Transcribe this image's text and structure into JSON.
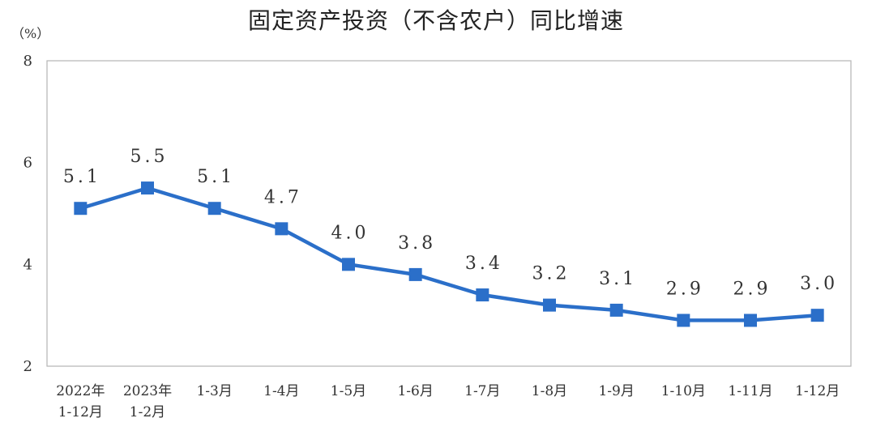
{
  "chart_data": {
    "type": "line",
    "title": "固定资产投资（不含农户）同比增速",
    "unit": "（%）",
    "categories": [
      [
        "2022年",
        "1-12月"
      ],
      [
        "2023年",
        "1-2月"
      ],
      [
        "1-3月"
      ],
      [
        "1-4月"
      ],
      [
        "1-5月"
      ],
      [
        "1-6月"
      ],
      [
        "1-7月"
      ],
      [
        "1-8月"
      ],
      [
        "1-9月"
      ],
      [
        "1-10月"
      ],
      [
        "1-11月"
      ],
      [
        "1-12月"
      ]
    ],
    "values": [
      5.1,
      5.5,
      5.1,
      4.7,
      4.0,
      3.8,
      3.4,
      3.2,
      3.1,
      2.9,
      2.9,
      3.0
    ],
    "value_labels": [
      "5.1",
      "5.5",
      "5.1",
      "4.7",
      "4.0",
      "3.8",
      "3.4",
      "3.2",
      "3.1",
      "2.9",
      "2.9",
      "3.0"
    ],
    "yticks": [
      "8",
      "6",
      "4",
      "2"
    ],
    "ylim": [
      2,
      8
    ],
    "grid": false,
    "colors": {
      "line": "#2b6fc9",
      "marker": "#2b6fc9",
      "frame": "#b5b5b5"
    }
  }
}
